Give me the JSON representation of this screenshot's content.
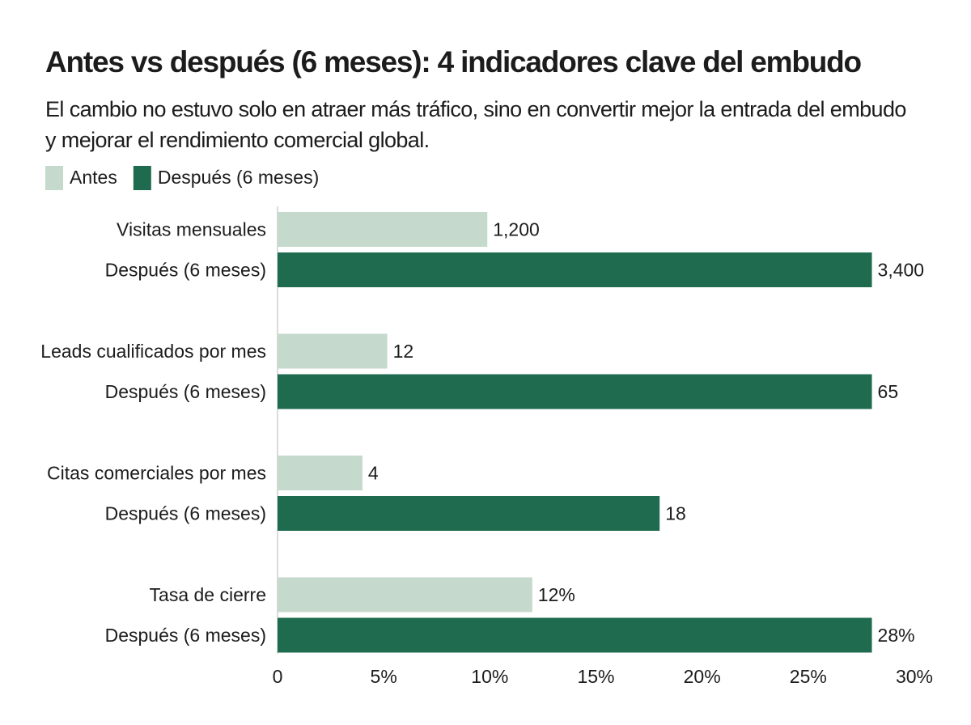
{
  "chart_data": {
    "type": "bar",
    "title": "Antes vs después (6 meses): 4 indicadores clave del embudo",
    "subtitle": "El cambio no estuvo solo en atraer más tráfico, sino en convertir mejor la entrada del embudo y mejorar el rendimiento comercial global.",
    "categories": [
      "Visitas mensuales",
      "Leads cualificados por mes",
      "Citas comerciales por mes",
      "Tasa de cierre"
    ],
    "series": [
      {
        "name": "Antes",
        "color": "#c5d9cc",
        "values": [
          1200,
          12,
          4,
          12
        ],
        "value_labels": [
          "1,200",
          "12",
          "4",
          "12%"
        ]
      },
      {
        "name": "Después (6 meses)",
        "color": "#1f6b4f",
        "values": [
          3400,
          65,
          18,
          28
        ],
        "value_labels": [
          "3,400",
          "65",
          "18",
          "28%"
        ]
      }
    ],
    "xlim": [
      0,
      30
    ],
    "xticks": [
      0,
      {
        "value": 5,
        "label": "5%"
      },
      {
        "value": 10,
        "label": "10%"
      },
      {
        "value": 15,
        "label": "15%"
      },
      {
        "value": 20,
        "label": "20%"
      },
      {
        "value": 25,
        "label": "25%"
      },
      {
        "value": 30,
        "label": "30%"
      }
    ],
    "legend": "top-left"
  }
}
